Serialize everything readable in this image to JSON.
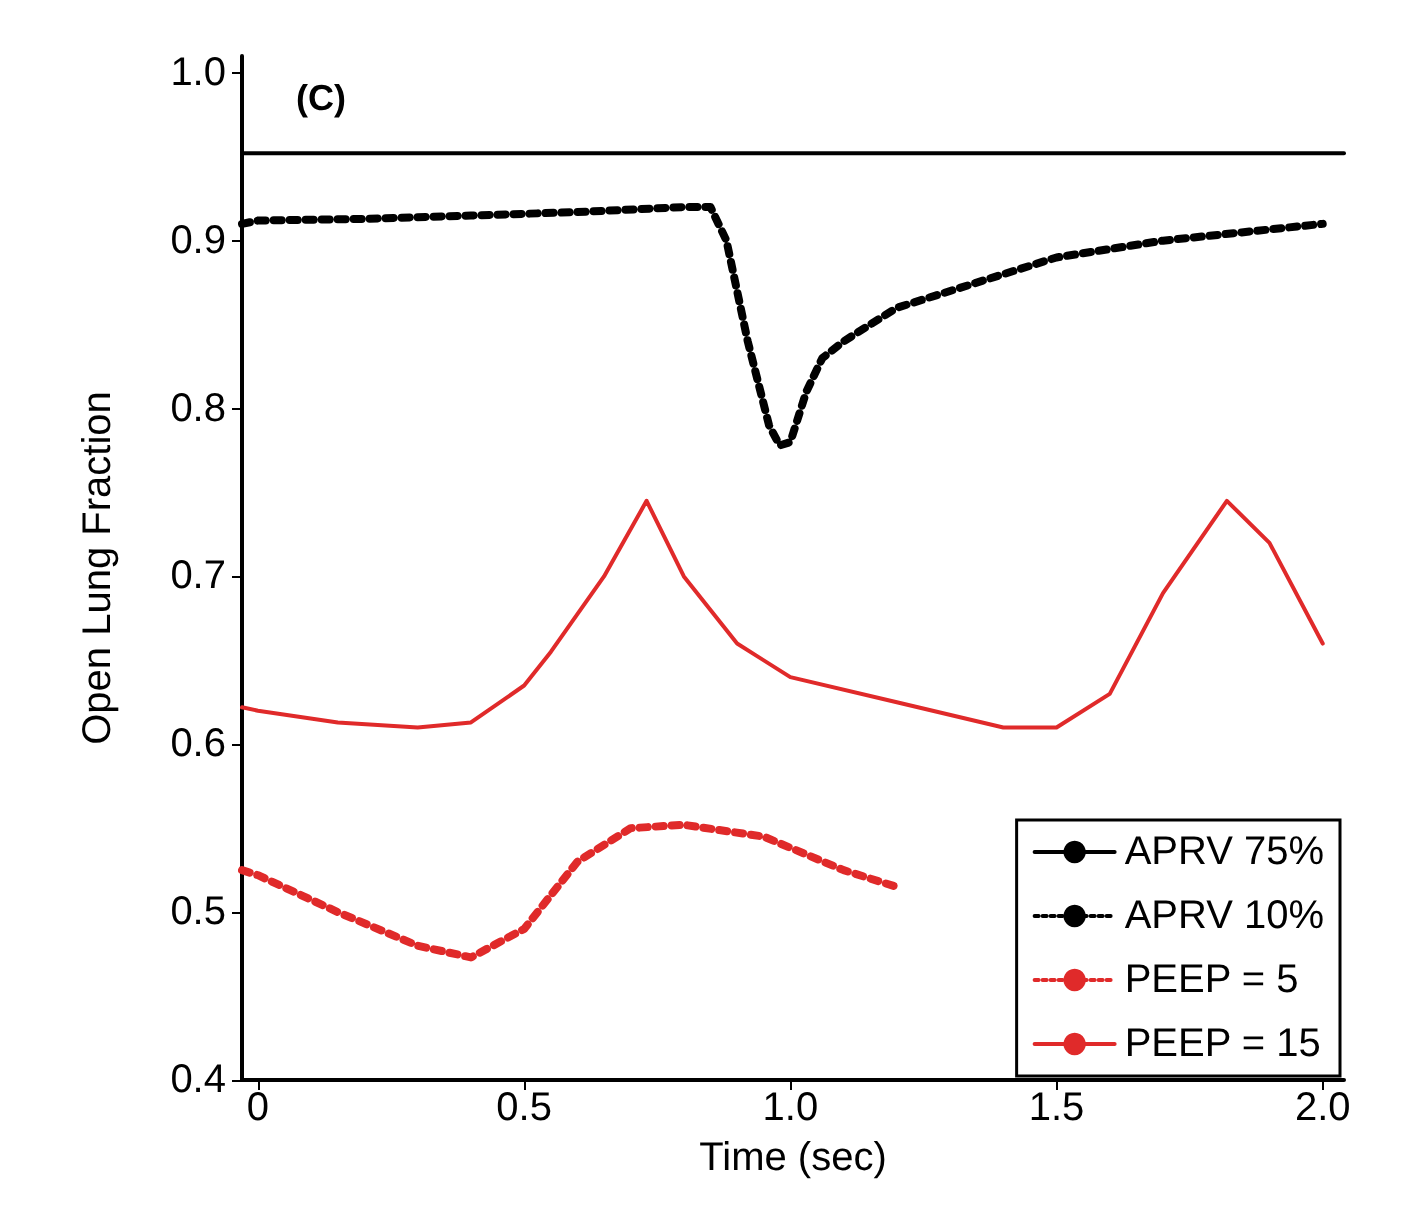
{
  "chart_data": {
    "type": "line",
    "xlabel": "Time (sec)",
    "ylabel": "Open Lung Fraction",
    "annotations": [
      "(C)"
    ],
    "xlim": [
      -0.03,
      2.04
    ],
    "xticks": [
      0,
      0.5,
      {
        "value": 1,
        "label": "1.0"
      },
      1.5,
      {
        "value": 2,
        "label": "2.0"
      }
    ],
    "ylim": [
      0.4,
      1.01
    ],
    "yticks": [
      0.4,
      0.5,
      0.6,
      0.7,
      0.8,
      0.9,
      {
        "value": 1,
        "label": "1.0"
      }
    ],
    "grid": false,
    "legend": "bottom right",
    "marker": "none",
    "series": [
      {
        "name": "APRV 75%",
        "color": "#000000",
        "line_style": "solid",
        "x": [
          -0.03,
          2.04
        ],
        "values": [
          0.952,
          0.952
        ]
      },
      {
        "name": "APRV 10%",
        "color": "#000000",
        "line_style": "dotted",
        "x": [
          -0.03,
          0,
          0.2,
          0.4,
          0.6,
          0.8,
          0.85,
          0.88,
          0.92,
          0.96,
          0.98,
          1.0,
          1.03,
          1.06,
          1.1,
          1.2,
          1.3,
          1.5,
          1.7,
          2.0
        ],
        "values": [
          0.91,
          0.912,
          0.913,
          0.915,
          0.917,
          0.92,
          0.92,
          0.9,
          0.84,
          0.79,
          0.778,
          0.78,
          0.81,
          0.83,
          0.84,
          0.86,
          0.87,
          0.89,
          0.9,
          0.91
        ]
      },
      {
        "name": "PEEP = 5",
        "color": "#e02a2a",
        "line_style": "dotted",
        "x": [
          -0.03,
          0,
          0.15,
          0.3,
          0.4,
          0.5,
          0.6,
          0.7,
          0.8,
          0.95,
          1.1,
          1.2
        ],
        "values": [
          0.525,
          0.522,
          0.5,
          0.48,
          0.473,
          0.49,
          0.53,
          0.55,
          0.552,
          0.545,
          0.525,
          0.515
        ]
      },
      {
        "name": "PEEP = 15",
        "color": "#e02a2a",
        "line_style": "solid",
        "x": [
          -0.03,
          0,
          0.15,
          0.3,
          0.4,
          0.5,
          0.55,
          0.65,
          0.73,
          0.8,
          0.9,
          1.0,
          1.2,
          1.4,
          1.5,
          1.6,
          1.7,
          1.82,
          1.9,
          2.0
        ],
        "values": [
          0.622,
          0.62,
          0.613,
          0.61,
          0.613,
          0.635,
          0.655,
          0.7,
          0.745,
          0.7,
          0.66,
          0.64,
          0.625,
          0.61,
          0.61,
          0.63,
          0.69,
          0.745,
          0.72,
          0.66
        ]
      }
    ]
  }
}
